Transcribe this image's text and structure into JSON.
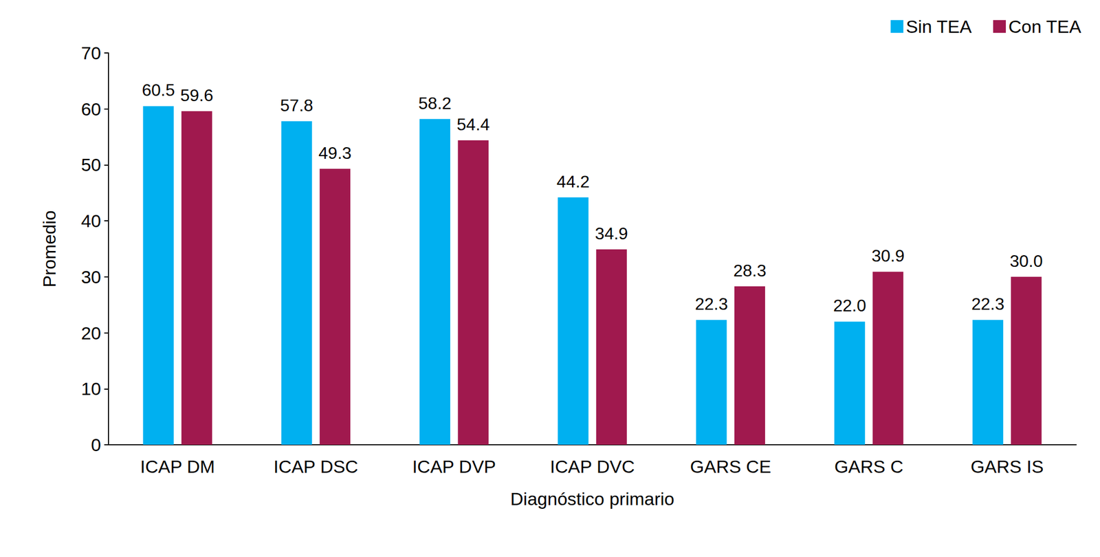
{
  "chart_data": {
    "type": "bar",
    "x_label": "Diagnóstico primario",
    "y_label": "Promedio",
    "categories": [
      "ICAP DM",
      "ICAP DSC",
      "ICAP DVP",
      "ICAP DVC",
      "GARS CE",
      "GARS C",
      "GARS IS"
    ],
    "series": [
      {
        "name": "Sin TEA",
        "color": "#00b0f0",
        "values": [
          60.5,
          57.8,
          58.2,
          44.2,
          22.3,
          22.0,
          22.3
        ],
        "value_labels": [
          "60.5",
          "57.8",
          "58.2",
          "44.2",
          "22.3",
          "22.0",
          "22.3"
        ]
      },
      {
        "name": "Con TEA",
        "color": "#a0194e",
        "values": [
          59.6,
          49.3,
          54.4,
          34.9,
          28.3,
          30.9,
          30.0
        ],
        "value_labels": [
          "59.6",
          "49.3",
          "54.4",
          "34.9",
          "28.3",
          "30.9",
          "30.0"
        ]
      }
    ],
    "ylim": [
      0,
      70
    ],
    "yticks": [
      0,
      10,
      20,
      30,
      40,
      50,
      60,
      70
    ],
    "grid": false,
    "legend": "top-right",
    "data_labels": true
  }
}
